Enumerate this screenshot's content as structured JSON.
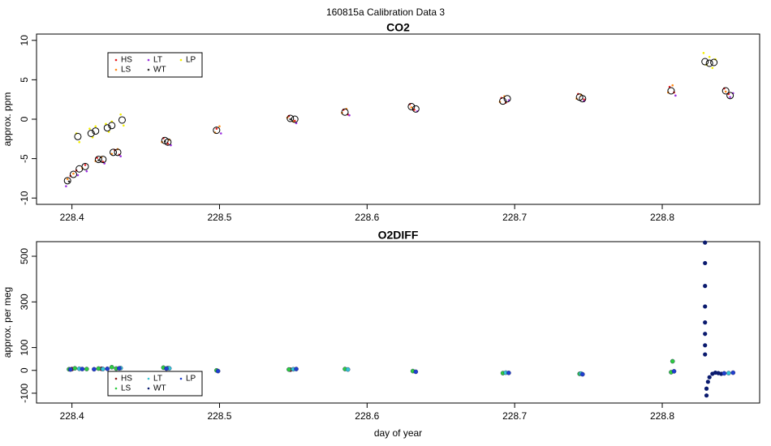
{
  "title": "160815a   Calibration Data 3",
  "chart_data": [
    {
      "type": "scatter",
      "title": "CO2",
      "ylabel": "approx. ppm",
      "xlim": [
        228.376,
        228.866
      ],
      "xticks": [
        228.4,
        228.5,
        228.6,
        228.7,
        228.8
      ],
      "ylim": [
        -10.8,
        10.8
      ],
      "yticks": [
        -10,
        -5,
        0,
        5,
        10
      ],
      "legend": "upper left",
      "series": [
        {
          "name": "HS",
          "color": "#e41a1c",
          "x": [
            228.399,
            228.403,
            228.409,
            228.417,
            228.421,
            228.429,
            228.432,
            228.462,
            228.465,
            228.498,
            228.547,
            228.551,
            228.584,
            228.587,
            228.629,
            228.632,
            228.691,
            228.694,
            228.743,
            228.747,
            228.805,
            228.808,
            228.842,
            228.845
          ],
          "values": [
            -7.2,
            -6.5,
            -5.8,
            -4.9,
            -5.4,
            -3.9,
            -4.5,
            -2.4,
            -3.1,
            -1.2,
            0.4,
            -0.2,
            1.2,
            0.6,
            1.9,
            1.2,
            2.7,
            2.1,
            3.2,
            2.5,
            4.1,
            3.4,
            3.9,
            3.2
          ]
        },
        {
          "name": "LS",
          "color": "#ff8c1a",
          "x": [
            228.397,
            228.401,
            228.407,
            228.416,
            228.42,
            228.427,
            228.431,
            228.461,
            228.466,
            228.497,
            228.5,
            228.546,
            228.55,
            228.583,
            228.586,
            228.63,
            228.69,
            228.693,
            228.742,
            228.745,
            228.804,
            228.807,
            228.843
          ],
          "values": [
            -7.6,
            -6.9,
            -6.2,
            -5.3,
            -4.8,
            -4.4,
            -3.8,
            -2.9,
            -2.6,
            -1.7,
            -0.9,
            0.2,
            -0.3,
            0.8,
            1.3,
            1.5,
            2.2,
            2.9,
            2.6,
            3.1,
            3.4,
            4.3,
            3.5
          ]
        },
        {
          "name": "LT",
          "color": "#9b30e0",
          "x": [
            228.396,
            228.404,
            228.41,
            228.422,
            228.433,
            228.467,
            228.501,
            228.552,
            228.588,
            228.634,
            228.696,
            228.747,
            228.809,
            228.846,
            228.848
          ],
          "values": [
            -8.5,
            -7.1,
            -6.6,
            -5.6,
            -4.7,
            -3.3,
            -1.8,
            -0.5,
            0.5,
            1.0,
            2.4,
            2.3,
            3.0,
            2.8,
            3.3
          ]
        },
        {
          "name": "WT",
          "color": "#333333",
          "x": [
            228.398,
            228.418,
            228.463,
            228.548
          ],
          "values": [
            -7.9,
            -5.2,
            -2.8,
            0.0
          ]
        },
        {
          "name": "LP",
          "color": "#f5f000",
          "x": [
            228.403,
            228.405,
            228.412,
            228.414,
            228.416,
            228.423,
            228.425,
            228.427,
            228.433,
            228.435,
            228.828,
            228.83,
            228.832,
            228.834,
            228.836
          ],
          "values": [
            -1.8,
            -2.9,
            -1.2,
            -2.3,
            -0.9,
            -0.6,
            -1.6,
            -0.3,
            0.6,
            -0.8,
            8.4,
            6.9,
            7.9,
            6.5,
            7.6
          ]
        }
      ],
      "means": {
        "x": [
          228.397,
          228.401,
          228.405,
          228.409,
          228.404,
          228.413,
          228.416,
          228.418,
          228.421,
          228.424,
          228.427,
          228.428,
          228.431,
          228.434,
          228.463,
          228.465,
          228.498,
          228.548,
          228.551,
          228.585,
          228.63,
          228.633,
          228.692,
          228.695,
          228.744,
          228.746,
          228.806,
          228.829,
          228.832,
          228.835,
          228.843,
          228.846
        ],
        "values": [
          -7.8,
          -7,
          -6.3,
          -6,
          -2.2,
          -1.8,
          -1.5,
          -5.1,
          -5.1,
          -1.1,
          -0.8,
          -4.2,
          -4.2,
          -0.1,
          -2.7,
          -2.9,
          -1.4,
          0.1,
          0,
          0.9,
          1.6,
          1.3,
          2.3,
          2.6,
          2.8,
          2.6,
          3.6,
          7.3,
          7.1,
          7.2,
          3.6,
          3.0
        ]
      }
    },
    {
      "type": "scatter",
      "title": "O2DIFF",
      "ylabel": "approx. per meg",
      "xlabel": "day of year",
      "xlim": [
        228.376,
        228.866
      ],
      "xticks": [
        228.4,
        228.5,
        228.6,
        228.7,
        228.8
      ],
      "ylim": [
        -143,
        564
      ],
      "yticks": [
        -100,
        0,
        100,
        300,
        500
      ],
      "legend": "lower left",
      "series": [
        {
          "name": "HS",
          "color": "#8b1a1a",
          "x": [
            228.4,
            228.42,
            228.548
          ],
          "values": [
            6,
            7,
            3
          ]
        },
        {
          "name": "LS",
          "color": "#2ecc40",
          "x": [
            228.398,
            228.402,
            228.41,
            228.418,
            228.427,
            228.43,
            228.462,
            228.465,
            228.498,
            228.547,
            228.585,
            228.631,
            228.692,
            228.744,
            228.806,
            228.807
          ],
          "values": [
            5,
            9,
            6,
            8,
            14,
            8,
            12,
            10,
            0,
            4,
            6,
            -3,
            -12,
            -15,
            -8,
            40
          ]
        },
        {
          "name": "LT",
          "color": "#33c6d6",
          "x": [
            228.405,
            228.421,
            228.433,
            228.466,
            228.55,
            228.587,
            228.694,
            228.745,
            228.845
          ],
          "values": [
            7,
            6,
            10,
            9,
            5,
            4,
            -10,
            -14,
            -12
          ]
        },
        {
          "name": "WT",
          "color": "#0a1a6e",
          "x": [
            228.829,
            228.829,
            228.829,
            228.829,
            228.829,
            228.829,
            228.829,
            228.829,
            228.83,
            228.83,
            228.831,
            228.832,
            228.834,
            228.836,
            228.838,
            228.84
          ],
          "values": [
            560,
            470,
            370,
            280,
            210,
            160,
            110,
            70,
            -110,
            -80,
            -50,
            -30,
            -15,
            -10,
            -12,
            -15
          ]
        },
        {
          "name": "LP",
          "color": "#1f3fd0",
          "x": [
            228.399,
            228.407,
            228.415,
            228.424,
            228.432,
            228.464,
            228.499,
            228.552,
            228.633,
            228.696,
            228.746,
            228.808,
            228.842,
            228.848
          ],
          "values": [
            4,
            6,
            5,
            7,
            9,
            8,
            -3,
            6,
            -6,
            -11,
            -17,
            -4,
            -13,
            -10
          ]
        }
      ]
    }
  ]
}
